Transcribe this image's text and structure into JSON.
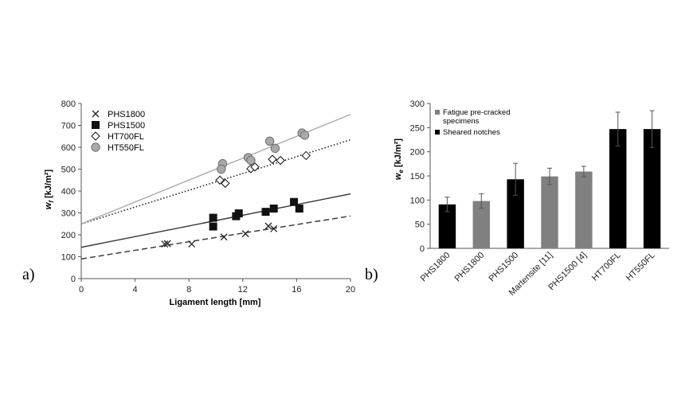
{
  "chart_data": [
    {
      "type": "scatter",
      "panel_label": "a)",
      "xlabel": "Ligament length [mm]",
      "ylabel_main": "w",
      "ylabel_sub": "f",
      "ylabel_unit": " [kJ/m²]",
      "xlim": [
        0,
        20
      ],
      "ylim": [
        0,
        800
      ],
      "xticks": [
        "0",
        "4",
        "8",
        "12",
        "16",
        "20"
      ],
      "yticks": [
        "0",
        "100",
        "200",
        "300",
        "400",
        "500",
        "600",
        "700",
        "800"
      ],
      "grid": false,
      "legend_position": "top-left",
      "series": [
        {
          "name": "PHS1800",
          "marker": "x",
          "color": "#222222",
          "points": [
            [
              6.2,
              158
            ],
            [
              6.4,
              160
            ],
            [
              8.2,
              158
            ],
            [
              10.6,
              190
            ],
            [
              12.2,
              205
            ],
            [
              13.9,
              240
            ],
            [
              14.3,
              228
            ]
          ],
          "fit": {
            "style": "dashed",
            "color": "#333333",
            "intercept": 90,
            "slope": 9.8
          }
        },
        {
          "name": "PHS1500",
          "marker": "square",
          "color": "#111111",
          "points": [
            [
              9.8,
              278
            ],
            [
              9.8,
              238
            ],
            [
              11.5,
              285
            ],
            [
              11.7,
              298
            ],
            [
              13.7,
              305
            ],
            [
              14.3,
              320
            ],
            [
              15.8,
              350
            ],
            [
              16.2,
              320
            ]
          ],
          "fit": {
            "style": "solid",
            "color": "#333333",
            "intercept": 143,
            "slope": 12.2
          }
        },
        {
          "name": "HT700FL",
          "marker": "diamond",
          "color": "#111111",
          "points": [
            [
              10.3,
              450
            ],
            [
              10.7,
              435
            ],
            [
              12.6,
              502
            ],
            [
              12.9,
              510
            ],
            [
              14.2,
              545
            ],
            [
              14.8,
              540
            ],
            [
              16.7,
              562
            ]
          ],
          "fit": {
            "style": "dotted",
            "color": "#222222",
            "intercept": 250,
            "slope": 19.2
          }
        },
        {
          "name": "HT550FL",
          "marker": "circle",
          "color": "#a9a9a9",
          "points": [
            [
              10.5,
              525
            ],
            [
              10.4,
              500
            ],
            [
              12.4,
              553
            ],
            [
              12.6,
              540
            ],
            [
              14.0,
              628
            ],
            [
              14.4,
              595
            ],
            [
              16.4,
              665
            ],
            [
              16.6,
              655
            ]
          ],
          "fit": {
            "style": "solid",
            "color": "#a9a9a9",
            "intercept": 250,
            "slope": 25
          }
        }
      ]
    },
    {
      "type": "bar",
      "panel_label": "b)",
      "ylabel_main": "w",
      "ylabel_sub": "e",
      "ylabel_unit": " [kJ/m²]",
      "ylim": [
        0,
        300
      ],
      "yticks": [
        "0",
        "50",
        "100",
        "150",
        "200",
        "250",
        "300"
      ],
      "grid": false,
      "legend_position": "top-left",
      "legend": [
        {
          "name": "Fatigue pre-cracked",
          "name2": "specimens",
          "color": "#808080"
        },
        {
          "name": "Sheared notches",
          "color": "#000000"
        }
      ],
      "categories": [
        "PHS1800",
        "PHS1800",
        "PHS1500",
        "Martensite [11]",
        "PHS1500 [4]",
        "HT700FL",
        "HT550FL"
      ],
      "values": [
        91,
        98,
        143,
        149,
        159,
        247,
        247
      ],
      "errors": [
        15,
        15,
        33,
        17,
        11,
        35,
        38
      ],
      "colors": [
        "#000000",
        "#808080",
        "#000000",
        "#808080",
        "#808080",
        "#000000",
        "#000000"
      ]
    }
  ]
}
